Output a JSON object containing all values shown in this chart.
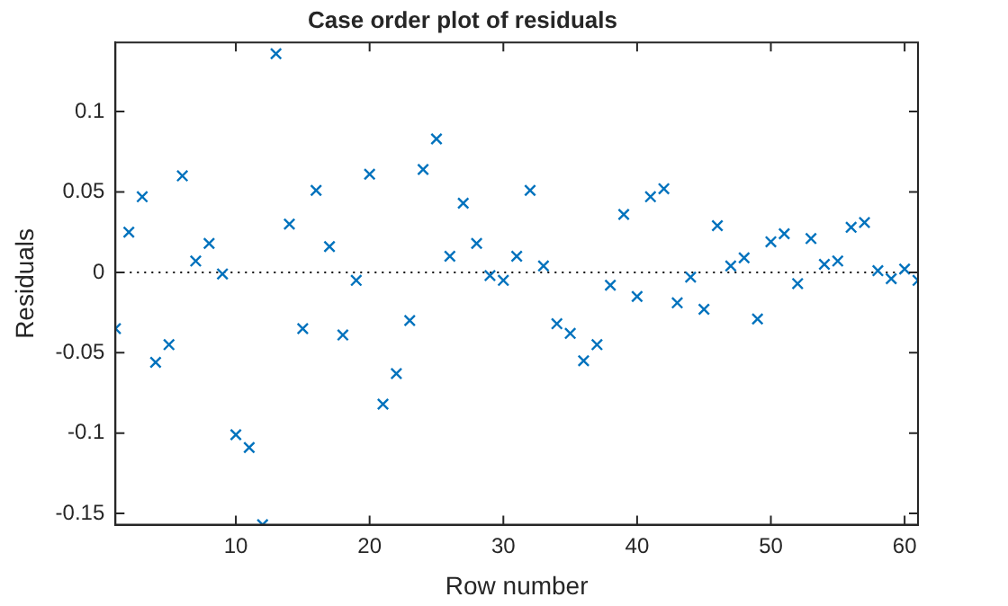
{
  "chart_data": {
    "type": "scatter",
    "title": "Case order plot of residuals",
    "xlabel": "Row number",
    "ylabel": "Residuals",
    "x": [
      1,
      2,
      3,
      4,
      5,
      6,
      7,
      8,
      9,
      10,
      11,
      12,
      13,
      14,
      15,
      16,
      17,
      18,
      19,
      20,
      21,
      22,
      23,
      24,
      25,
      26,
      27,
      28,
      29,
      30,
      31,
      32,
      33,
      34,
      35,
      36,
      37,
      38,
      39,
      40,
      41,
      42,
      43,
      44,
      45,
      46,
      47,
      48,
      49,
      50,
      51,
      52,
      53,
      54,
      55,
      56,
      57,
      58,
      59,
      60,
      61
    ],
    "series": [
      {
        "color": "#0072bd",
        "values": [
          -0.035,
          0.025,
          0.047,
          -0.056,
          -0.045,
          0.06,
          0.007,
          0.018,
          -0.001,
          -0.101,
          -0.109,
          -0.157,
          0.136,
          0.03,
          -0.035,
          0.051,
          0.016,
          -0.039,
          -0.005,
          0.061,
          -0.082,
          -0.063,
          -0.03,
          0.064,
          0.083,
          0.01,
          0.043,
          0.018,
          -0.002,
          -0.005,
          0.01,
          0.051,
          0.004,
          -0.032,
          -0.038,
          -0.055,
          -0.045,
          -0.008,
          0.036,
          -0.015,
          0.047,
          0.052,
          -0.019,
          -0.003,
          -0.023,
          0.029,
          0.004,
          0.009,
          -0.029,
          0.019,
          0.024,
          -0.007,
          0.021,
          0.005,
          0.007,
          0.028,
          0.031,
          0.001,
          -0.004,
          0.002,
          -0.005
        ]
      }
    ],
    "xlim": [
      1,
      61
    ],
    "xticks": [
      10,
      20,
      30,
      40,
      50,
      60
    ],
    "ylim": [
      -0.157,
      0.143
    ],
    "yticks": [
      -0.15,
      -0.1,
      -0.05,
      0,
      0.05,
      0.1
    ],
    "ref_lines": [
      {
        "axis": "y",
        "value": 0,
        "color": "#000000",
        "line_style": "dotted"
      }
    ],
    "marker": "cross",
    "grid": false,
    "legend": false
  }
}
